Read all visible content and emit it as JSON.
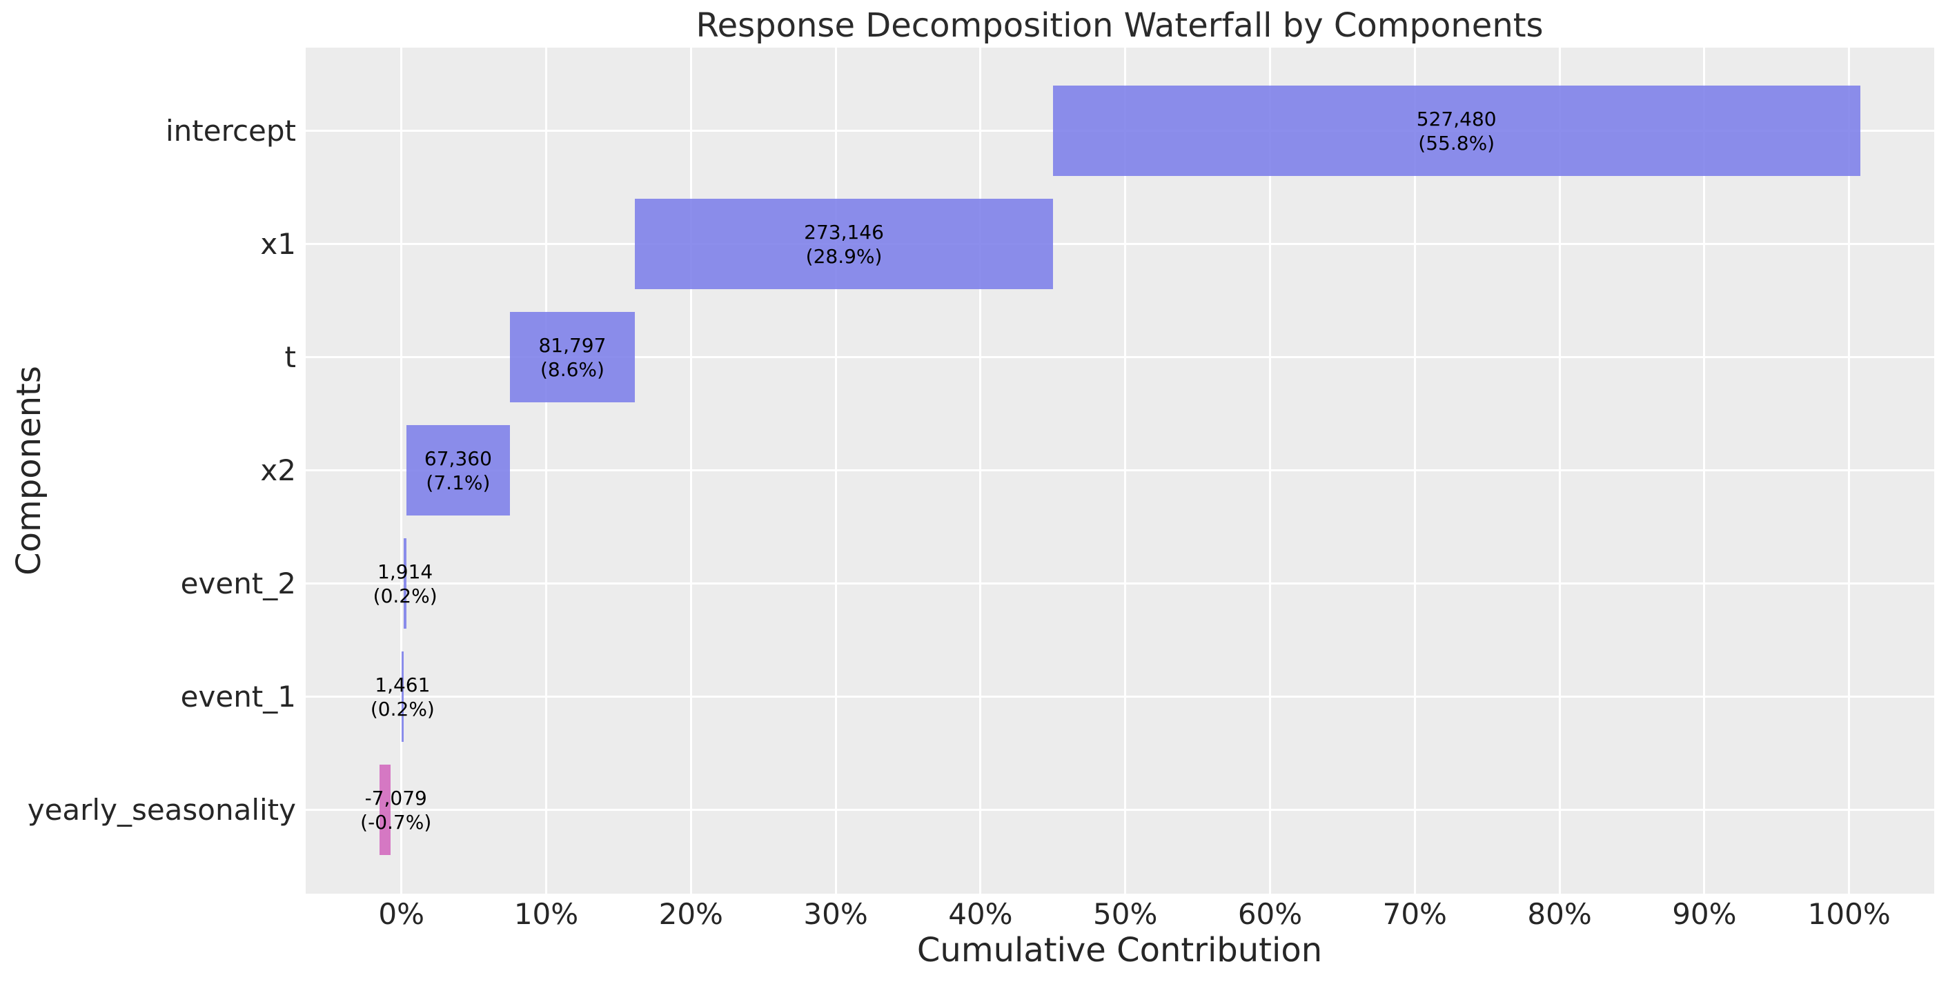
{
  "title": "Response Decomposition Waterfall by Components",
  "xlabel": "Cumulative Contribution",
  "ylabel": "Components",
  "colors": {
    "positive_bar": "rgba(127,130,234,0.9)",
    "negative_bar": "rgba(211,107,191,0.9)",
    "plot_background": "#ececec",
    "gridline": "#ffffff",
    "text": "#262626",
    "bar_label_text": "#000000"
  },
  "chart_data": {
    "type": "bar",
    "subtype": "horizontal-waterfall",
    "title": "Response Decomposition Waterfall by Components",
    "xlabel": "Cumulative Contribution",
    "ylabel": "Components",
    "grid": true,
    "legend": false,
    "xlim_pct": [
      -6.61,
      105.87
    ],
    "x_ticks": [
      {
        "value": 0,
        "label": "0%"
      },
      {
        "value": 10,
        "label": "10%"
      },
      {
        "value": 20,
        "label": "20%"
      },
      {
        "value": 30,
        "label": "30%"
      },
      {
        "value": 40,
        "label": "40%"
      },
      {
        "value": 50,
        "label": "50%"
      },
      {
        "value": 60,
        "label": "60%"
      },
      {
        "value": 70,
        "label": "70%"
      },
      {
        "value": 80,
        "label": "80%"
      },
      {
        "value": 90,
        "label": "90%"
      },
      {
        "value": 100,
        "label": "100%"
      }
    ],
    "categories": [
      "intercept",
      "x1",
      "t",
      "x2",
      "event_2",
      "event_1",
      "yearly_seasonality"
    ],
    "bars": [
      {
        "component": "intercept",
        "value": 527480,
        "pct": 55.8,
        "start_pct": 45.0,
        "end_pct": 100.76,
        "label_x_pct": 72.88,
        "sign": "positive",
        "label_lines": [
          "527,480",
          "(55.8%)"
        ]
      },
      {
        "component": "x1",
        "value": 273146,
        "pct": 28.9,
        "start_pct": 16.13,
        "end_pct": 45.0,
        "label_x_pct": 30.57,
        "sign": "positive",
        "label_lines": [
          "273,146",
          "(28.9%)"
        ]
      },
      {
        "component": "t",
        "value": 81797,
        "pct": 8.6,
        "start_pct": 7.48,
        "end_pct": 16.13,
        "label_x_pct": 11.81,
        "sign": "positive",
        "label_lines": [
          "81,797",
          "(8.6%)"
        ]
      },
      {
        "component": "x2",
        "value": 67360,
        "pct": 7.1,
        "start_pct": 0.36,
        "end_pct": 7.48,
        "label_x_pct": 3.92,
        "sign": "positive",
        "label_lines": [
          "67,360",
          "(7.1%)"
        ]
      },
      {
        "component": "event_2",
        "value": 1914,
        "pct": 0.2,
        "start_pct": 0.15,
        "end_pct": 0.36,
        "label_x_pct": 0.26,
        "sign": "positive",
        "label_lines": [
          "1,914",
          "(0.2%)"
        ]
      },
      {
        "component": "event_1",
        "value": 1461,
        "pct": 0.2,
        "start_pct": 0.0,
        "end_pct": 0.15,
        "label_x_pct": 0.08,
        "sign": "positive",
        "label_lines": [
          "1,461",
          "(0.2%)"
        ]
      },
      {
        "component": "yearly_seasonality",
        "value": -7079,
        "pct": -0.7,
        "start_pct": -1.5,
        "end_pct": -0.75,
        "label_x_pct": -0.38,
        "sign": "negative",
        "label_lines": [
          "-7,079",
          "(-0.7%)"
        ]
      }
    ]
  }
}
